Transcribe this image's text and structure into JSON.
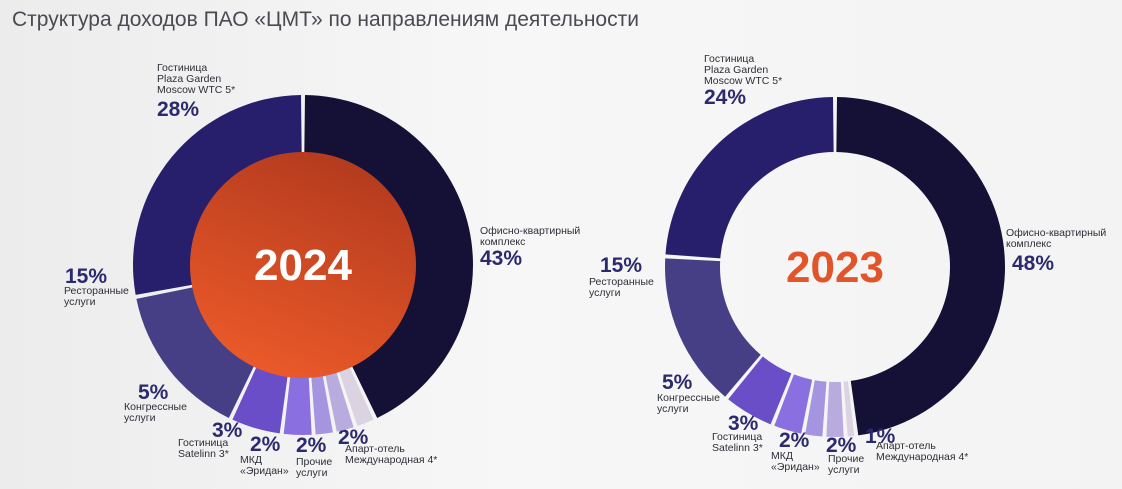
{
  "title": "Структура доходов ПАО «ЦМТ» по направлениям деятельности",
  "colors": {
    "office": "#141036",
    "hotel_plaza": "#271f6b",
    "restaurant": "#463f85",
    "congress": "#6a4ec7",
    "satelinn": "#8a6fe0",
    "eridan": "#a594df",
    "other": "#b8acdf",
    "apart": "#dcd3e2",
    "year_2023": "#e2552a",
    "year_2024_text": "#ffffff",
    "center_2024_top": "#b23a1e",
    "center_2024_bottom": "#ec5a29"
  },
  "chart_data": [
    {
      "type": "pie",
      "year": "2024",
      "slices": [
        {
          "key": "office",
          "lines": [
            "Офисно-квартирный",
            "комплекс"
          ],
          "pct_label": "43%",
          "value": 43
        },
        {
          "key": "apart",
          "lines": [
            "Апарт-отель",
            "Международная 4*"
          ],
          "pct_label": "2%",
          "value": 2
        },
        {
          "key": "other",
          "lines": [
            "Прочие",
            "услуги"
          ],
          "pct_label": "2%",
          "value": 2
        },
        {
          "key": "eridan",
          "lines": [
            "МКД",
            "«Эридан»"
          ],
          "pct_label": "2%",
          "value": 2
        },
        {
          "key": "satelinn",
          "lines": [
            "Гостиница",
            "Satelinn 3*"
          ],
          "pct_label": "3%",
          "value": 3
        },
        {
          "key": "congress",
          "lines": [
            "Конгрессные",
            "услуги"
          ],
          "pct_label": "5%",
          "value": 5
        },
        {
          "key": "restaurant",
          "lines": [
            "Ресторанные",
            "услуги"
          ],
          "pct_label": "15%",
          "value": 15
        },
        {
          "key": "hotel_plaza",
          "lines": [
            "Гостиница",
            "Plaza Garden",
            "Moscow WTC 5*"
          ],
          "pct_label": "28%",
          "value": 28
        }
      ]
    },
    {
      "type": "pie",
      "year": "2023",
      "slices": [
        {
          "key": "office",
          "lines": [
            "Офисно-квартирный",
            "комплекс"
          ],
          "pct_label": "48%",
          "value": 48
        },
        {
          "key": "apart",
          "lines": [
            "Апарт-отель",
            "Международная 4*"
          ],
          "pct_label": "1%",
          "value": 1
        },
        {
          "key": "other",
          "lines": [
            "Прочие",
            "услуги"
          ],
          "pct_label": "2%",
          "value": 2
        },
        {
          "key": "eridan",
          "lines": [
            "МКД",
            "«Эридан»"
          ],
          "pct_label": "2%",
          "value": 2
        },
        {
          "key": "satelinn",
          "lines": [
            "Гостиница",
            "Satelinn 3*"
          ],
          "pct_label": "3%",
          "value": 3
        },
        {
          "key": "congress",
          "lines": [
            "Конгрессные",
            "услуги"
          ],
          "pct_label": "5%",
          "value": 5
        },
        {
          "key": "restaurant",
          "lines": [
            "Ресторанные",
            "услуги"
          ],
          "pct_label": "15%",
          "value": 15
        },
        {
          "key": "hotel_plaza",
          "lines": [
            "Гостиница",
            "Plaza Garden",
            "Moscow WTC 5*"
          ],
          "pct_label": "24%",
          "value": 24
        }
      ]
    }
  ]
}
